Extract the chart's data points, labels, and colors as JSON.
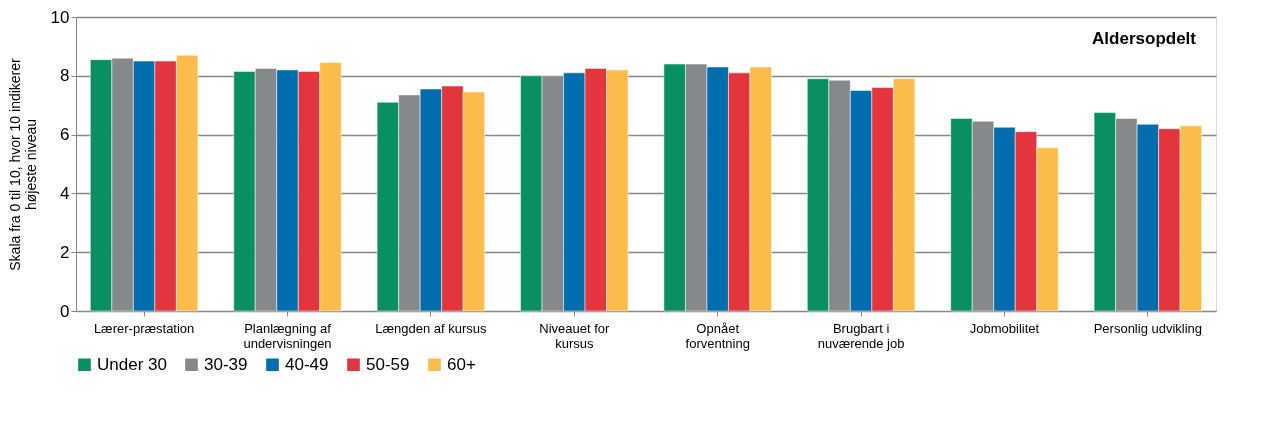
{
  "chart_data": {
    "type": "bar",
    "ylabel": "Skala fra 0  til 10, hvor 10 indikerer\nhøjeste niveau",
    "annotations": [
      "Aldersopdelt"
    ],
    "categories": [
      "Lærer-præstation",
      "Planlægning af\nundervisningen",
      "Længden af kursus",
      "Niveauet for\nkursus",
      "Opnået\nforventning",
      "Brugbart i\nnuværende job",
      "Jobmobilitet",
      "Personlig udvikling"
    ],
    "series": [
      {
        "name": "Under 30",
        "color": "#0a9060",
        "values": [
          8.55,
          8.15,
          7.1,
          8.0,
          8.4,
          7.9,
          6.55,
          6.75
        ]
      },
      {
        "name": "30-39",
        "color": "#86898b",
        "values": [
          8.6,
          8.25,
          7.35,
          8.0,
          8.4,
          7.85,
          6.45,
          6.55
        ]
      },
      {
        "name": "40-49",
        "color": "#006eae",
        "values": [
          8.5,
          8.2,
          7.55,
          8.1,
          8.3,
          7.5,
          6.25,
          6.35
        ]
      },
      {
        "name": "50-59",
        "color": "#e2353d",
        "values": [
          8.5,
          8.15,
          7.65,
          8.25,
          8.1,
          7.6,
          6.1,
          6.2
        ]
      },
      {
        "name": "60+",
        "color": "#fcbc4c",
        "values": [
          8.7,
          8.45,
          7.45,
          8.2,
          8.3,
          7.9,
          5.55,
          6.3
        ]
      }
    ],
    "ylim": [
      0,
      10
    ],
    "yticks": [
      0,
      2,
      4,
      6,
      8,
      10
    ],
    "grid": "y",
    "legend": "bottom"
  }
}
